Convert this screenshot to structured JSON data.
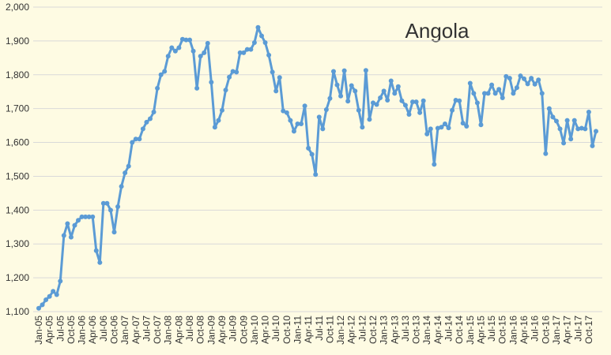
{
  "chart_data": {
    "type": "line",
    "title": "Angola",
    "color": "#5b9bd5",
    "grid": true,
    "ylim": [
      1100,
      2000
    ],
    "yticks": [
      {
        "value": 1100,
        "label": "1,100"
      },
      {
        "value": 1200,
        "label": "1,200"
      },
      {
        "value": 1300,
        "label": "1,300"
      },
      {
        "value": 1400,
        "label": "1,400"
      },
      {
        "value": 1500,
        "label": "1,500"
      },
      {
        "value": 1600,
        "label": "1,600"
      },
      {
        "value": 1700,
        "label": "1,700"
      },
      {
        "value": 1800,
        "label": "1,800"
      },
      {
        "value": 1900,
        "label": "1,900"
      },
      {
        "value": 2000,
        "label": "2,000"
      }
    ],
    "categories": [
      "Jan-05",
      null,
      null,
      "Apr-05",
      null,
      null,
      "Jul-05",
      null,
      null,
      "Oct-05",
      null,
      null,
      "Jan-06",
      null,
      null,
      "Apr-06",
      null,
      null,
      "Jul-06",
      null,
      null,
      "Oct-06",
      null,
      null,
      "Jan-07",
      null,
      null,
      "Apr-07",
      null,
      null,
      "Jul-07",
      null,
      null,
      "Oct-07",
      null,
      null,
      "Jan-08",
      null,
      null,
      "Apr-08",
      null,
      null,
      "Jul-08",
      null,
      null,
      "Oct-08",
      null,
      null,
      "Jan-09",
      null,
      null,
      "Apr-09",
      null,
      null,
      "Jul-09",
      null,
      null,
      "Oct-09",
      null,
      null,
      "Jan-10",
      null,
      null,
      "Apr-10",
      null,
      null,
      "Jul-10",
      null,
      null,
      "Oct-10",
      null,
      null,
      "Jan-11",
      null,
      null,
      "Apr-11",
      null,
      null,
      "Jul-11",
      null,
      null,
      "Oct-11",
      null,
      null,
      "Jan-12",
      null,
      null,
      "Apr-12",
      null,
      null,
      "Jul-12",
      null,
      null,
      "Oct-12",
      null,
      null,
      "Jan-13",
      null,
      null,
      "Apr-13",
      null,
      null,
      "Jul-13",
      null,
      null,
      "Oct-13",
      null,
      null,
      "Jan-14",
      null,
      null,
      "Apr-14",
      null,
      null,
      "Jul-14",
      null,
      null,
      "Oct-14",
      null,
      null,
      "Jan-15",
      null,
      null,
      "Apr-15",
      null,
      null,
      "Jul-15",
      null,
      null,
      "Oct-15",
      null,
      null,
      "Jan-16",
      null,
      null,
      "Apr-16",
      null,
      null,
      "Jul-16",
      null,
      null,
      "Oct-16",
      null,
      null,
      "Jan-17",
      null,
      null,
      "Apr-17",
      null,
      null,
      "Jul-17",
      null,
      null,
      "Oct-17",
      null,
      null
    ],
    "values": [
      1110,
      1120,
      1135,
      1145,
      1160,
      1150,
      1190,
      1325,
      1360,
      1320,
      1355,
      1370,
      1380,
      1380,
      1380,
      1380,
      1280,
      1245,
      1420,
      1420,
      1400,
      1335,
      1410,
      1470,
      1510,
      1530,
      1600,
      1610,
      1610,
      1640,
      1660,
      1670,
      1690,
      1760,
      1800,
      1810,
      1855,
      1880,
      1870,
      1880,
      1905,
      1903,
      1903,
      1870,
      1760,
      1855,
      1865,
      1893,
      1778,
      1645,
      1665,
      1695,
      1755,
      1793,
      1810,
      1808,
      1865,
      1865,
      1875,
      1875,
      1895,
      1940,
      1915,
      1895,
      1858,
      1808,
      1752,
      1792,
      1693,
      1688,
      1665,
      1633,
      1655,
      1655,
      1708,
      1583,
      1565,
      1505,
      1675,
      1640,
      1697,
      1730,
      1810,
      1770,
      1737,
      1812,
      1722,
      1768,
      1752,
      1695,
      1645,
      1813,
      1668,
      1717,
      1712,
      1732,
      1752,
      1725,
      1782,
      1745,
      1765,
      1723,
      1710,
      1683,
      1720,
      1720,
      1688,
      1723,
      1625,
      1640,
      1535,
      1642,
      1645,
      1655,
      1643,
      1695,
      1725,
      1723,
      1657,
      1648,
      1775,
      1745,
      1717,
      1652,
      1745,
      1745,
      1770,
      1745,
      1757,
      1732,
      1795,
      1790,
      1745,
      1762,
      1797,
      1788,
      1773,
      1790,
      1772,
      1785,
      1745,
      1567,
      1700,
      1675,
      1663,
      1640,
      1598,
      1665,
      1610,
      1665,
      1640,
      1642,
      1640,
      1690,
      1590,
      1633
    ]
  }
}
